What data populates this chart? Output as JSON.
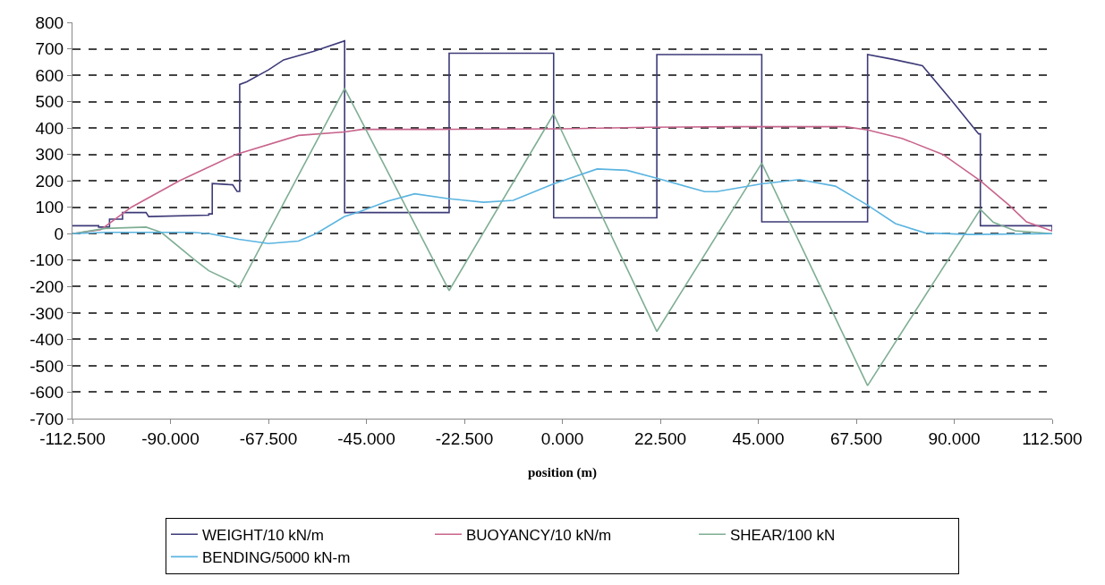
{
  "chart_data": {
    "type": "line",
    "xlabel": "position (m)",
    "xlim": [
      -112.5,
      112.5
    ],
    "xticks": [
      {
        "value": -112.5,
        "label": "-112.500"
      },
      {
        "value": -90,
        "label": "-90.000"
      },
      {
        "value": -67.5,
        "label": "-67.500"
      },
      {
        "value": -45,
        "label": "-45.000"
      },
      {
        "value": -22.5,
        "label": "-22.500"
      },
      {
        "value": 0,
        "label": "0.000"
      },
      {
        "value": 22.5,
        "label": "22.500"
      },
      {
        "value": 45,
        "label": "45.000"
      },
      {
        "value": 67.5,
        "label": "67.500"
      },
      {
        "value": 90,
        "label": "90.000"
      },
      {
        "value": 112.5,
        "label": "112.500"
      }
    ],
    "ylim": [
      -700,
      800
    ],
    "yticks": [
      -700,
      -600,
      -500,
      -400,
      -300,
      -200,
      -100,
      0,
      100,
      200,
      300,
      400,
      500,
      600,
      700,
      800
    ],
    "grid": "y",
    "legend": "bottom",
    "series": [
      {
        "name": "WEIGHT/10 kN/m",
        "color": "#3d3a78",
        "x": [
          -112.5,
          -106.5,
          -106.5,
          -104,
          -104,
          -101,
          -101,
          -95.6,
          -95,
          -81.2,
          -81.2,
          -80.4,
          -80.4,
          -75.7,
          -74.7,
          -74.1,
          -74.1,
          -72.5,
          -67.5,
          -64,
          -57.2,
          -50,
          -50,
          -26,
          -26,
          -2,
          -2,
          21.7,
          21.7,
          45.8,
          45.8,
          70.1,
          70.1,
          76,
          82.7,
          89.5,
          95.6,
          96,
          96,
          112.5,
          112.5
        ],
        "values": [
          30,
          30,
          25,
          25,
          55,
          55,
          80,
          80,
          65,
          70,
          75,
          75,
          190,
          185,
          160,
          160,
          565,
          575,
          620,
          658,
          690,
          730,
          80,
          80,
          683,
          683,
          60,
          60,
          678,
          678,
          45,
          45,
          678,
          660,
          636,
          502,
          378,
          378,
          30,
          30,
          10
        ]
      },
      {
        "name": "BUOYANCY/10 kN/m",
        "color": "#c8648c",
        "x": [
          -112.5,
          -106,
          -99,
          -88,
          -75,
          -60.6,
          -50,
          -46,
          -30,
          0,
          20,
          40,
          60,
          65,
          70.1,
          78,
          87.4,
          96,
          102.6,
          106.6,
          112.5
        ],
        "values": [
          0,
          15,
          100,
          200,
          300,
          372,
          385,
          395,
          395,
          397,
          403,
          405,
          405,
          405,
          393,
          361,
          300,
          200,
          108,
          45,
          10
        ]
      },
      {
        "name": "SHEAR/100 kN",
        "color": "#7fae94",
        "x": [
          -112.5,
          -105,
          -95.6,
          -92.1,
          -84.6,
          -81.2,
          -75.7,
          -74.3,
          -50,
          -26,
          -2,
          21.7,
          45.8,
          70.1,
          96,
          99,
          104,
          112.5
        ],
        "values": [
          0,
          20,
          25,
          5,
          -97,
          -140,
          -183,
          -204,
          550,
          -215,
          453,
          -370,
          267,
          -575,
          92,
          43,
          11,
          0
        ]
      },
      {
        "name": "BENDING/5000 kN-m",
        "color": "#5ab4e0",
        "x": [
          -112.5,
          -105,
          -85,
          -81,
          -74.3,
          -67.5,
          -60.6,
          -56.6,
          -50,
          -46.9,
          -40,
          -33.9,
          -26.3,
          -18.1,
          -11.3,
          -2,
          8,
          14.8,
          21.7,
          32.7,
          35.4,
          45.8,
          54.5,
          62.7,
          70.1,
          76.5,
          83.3,
          93.5,
          112.5
        ],
        "values": [
          0,
          5,
          5,
          0,
          -21,
          -37,
          -28,
          0,
          65,
          81,
          124,
          151,
          133,
          119,
          126,
          189,
          245,
          240,
          210,
          159,
          159,
          189,
          205,
          180,
          108,
          38,
          3,
          -3,
          0
        ]
      }
    ]
  }
}
